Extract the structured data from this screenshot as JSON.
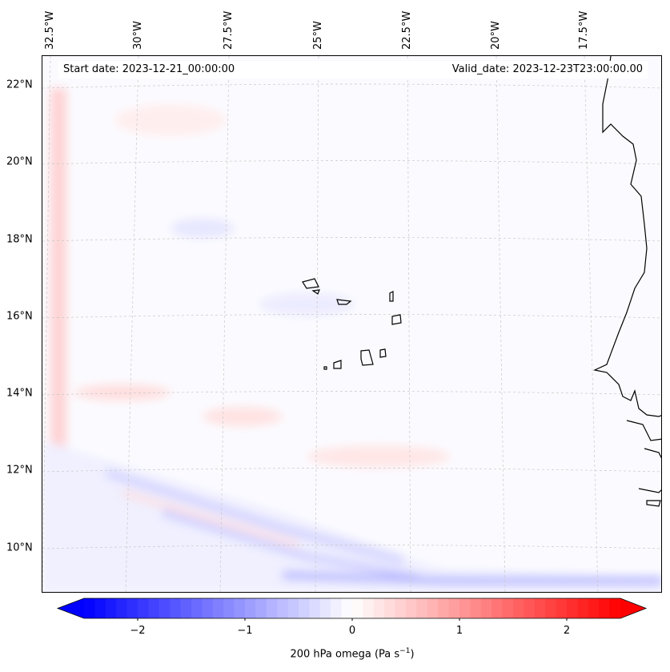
{
  "header": {
    "start_date": "Start date: 2023-12-21_00:00:00",
    "valid_date": "Valid_date: 2023-12-23T23:00:00.00"
  },
  "lon_labels": [
    "32.5°W",
    "30°W",
    "27.5°W",
    "25°W",
    "22.5°W",
    "20°W",
    "17.5°W"
  ],
  "lat_labels": [
    "22°N",
    "20°N",
    "18°N",
    "16°N",
    "14°N",
    "12°N",
    "10°N"
  ],
  "colorbar": {
    "label": "200 hPa omega (Pa s",
    "label_sup": "−1",
    "label_end": ")",
    "ticks": [
      "−2",
      "−1",
      "0",
      "1",
      "2"
    ],
    "tick_values": [
      -2,
      -1,
      0,
      1,
      2
    ],
    "range": [
      -2.5,
      2.5
    ],
    "levels": 50,
    "colors": {
      "min": "#0000ff",
      "mid": "#ffffff",
      "max": "#ff0000"
    }
  },
  "colors": {
    "coastline": "#000000",
    "gridline": "#c8c8c8",
    "negative": "#0000ff",
    "positive": "#ff0000"
  }
}
